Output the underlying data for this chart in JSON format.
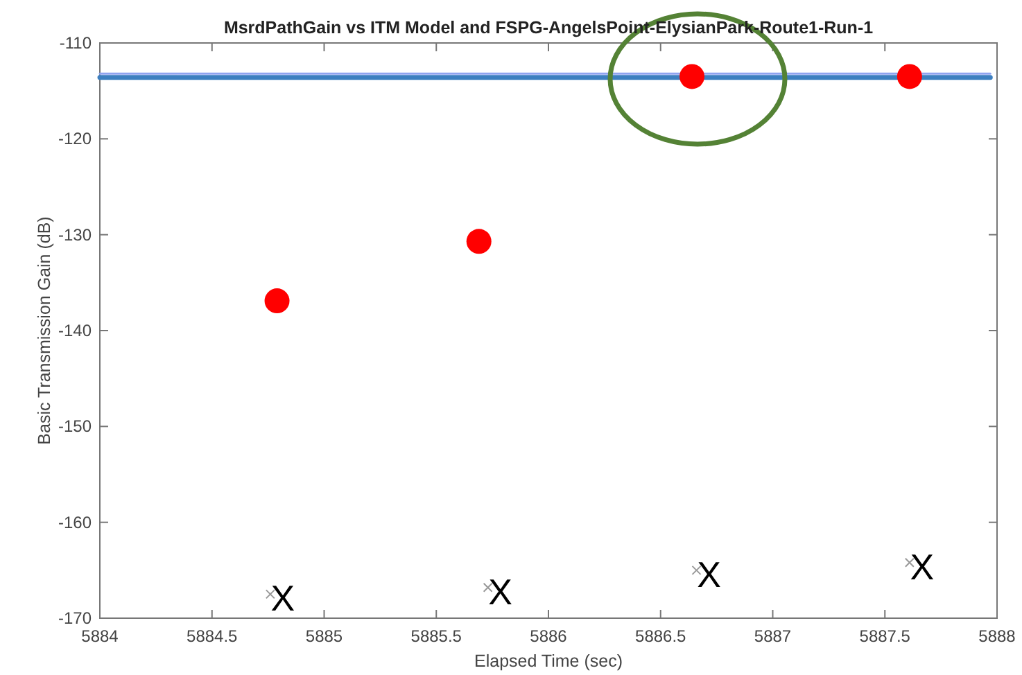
{
  "chart_data": {
    "type": "scatter",
    "title": "MsrdPathGain vs ITM Model and FSPG-AngelsPoint-ElysianPark-Route1-Run-1",
    "xlabel": "Elapsed Time (sec)",
    "ylabel": "Basic Transmission Gain (dB)",
    "xlim": [
      5884,
      5888
    ],
    "xticks": [
      5884,
      5884.5,
      5885,
      5885.5,
      5886,
      5886.5,
      5887,
      5887.5,
      5888
    ],
    "ylim": [
      -170,
      -110
    ],
    "yticks": [
      -170,
      -160,
      -150,
      -140,
      -130,
      -120,
      -110
    ],
    "grid": false,
    "series": [
      {
        "type": "line",
        "color": "#8fa3f0",
        "x": [
          5884,
          5887.97
        ],
        "values": [
          -113.2,
          -113.2
        ]
      },
      {
        "type": "line",
        "color": "#3d7fc0",
        "x": [
          5884,
          5887.97
        ],
        "values": [
          -113.6,
          -113.6
        ]
      },
      {
        "color": "#ff0000",
        "marker": "circle",
        "x": [
          5884.79,
          5885.69,
          5886.64,
          5887.61
        ],
        "values": [
          -136.9,
          -130.7,
          -113.5,
          -113.5
        ]
      },
      {
        "color": "#999999",
        "marker": "cross",
        "x": [
          5884.76,
          5885.73,
          5886.66,
          5887.61
        ],
        "values": [
          -167.5,
          -166.8,
          -165.0,
          -164.2
        ]
      }
    ],
    "annotations": [
      "X",
      "X",
      "X",
      "X"
    ]
  }
}
